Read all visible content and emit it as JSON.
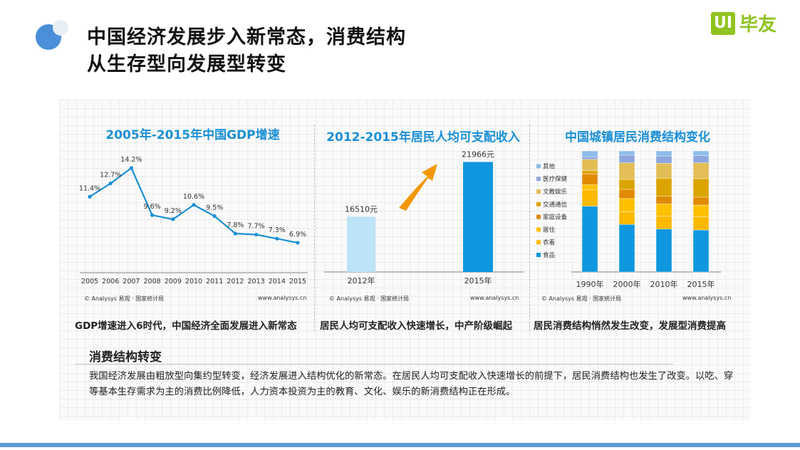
{
  "header": {
    "title_line1": "中国经济发展步入新常态，消费结构",
    "title_line2": "从生存型向发展型转变",
    "logo_badge": "UI",
    "logo_text": "毕友"
  },
  "colors": {
    "blue": "#0f97df",
    "accent": "#1a8fd6",
    "arrow": "#f39800",
    "light_bar": "#bde3f7"
  },
  "chart_data": [
    {
      "type": "line",
      "title": "2005年-2015年中国GDP增速",
      "x": [
        "2005",
        "2006",
        "2007",
        "2008",
        "2009",
        "2010",
        "2011",
        "2012",
        "2013",
        "2014",
        "2015"
      ],
      "values": [
        11.4,
        12.7,
        14.2,
        9.6,
        9.2,
        10.6,
        9.5,
        7.8,
        7.7,
        7.3,
        6.9
      ],
      "labels": [
        "11.4%",
        "12.7%",
        "14.2%",
        "9.6%",
        "9.2%",
        "10.6%",
        "9.5%",
        "7.8%",
        "7.7%",
        "7.3%",
        "6.9%"
      ],
      "ylim": [
        0,
        16
      ],
      "source": "© Analysys 易观 · 国家统计局",
      "site": "www.analysys.cn"
    },
    {
      "type": "bar",
      "title": "2012-2015年居民人均可支配收入",
      "categories": [
        "2012年",
        "2015年"
      ],
      "values": [
        16510,
        21966
      ],
      "labels": [
        "16510元",
        "21966元"
      ],
      "ylim": [
        11000,
        22000
      ],
      "source": "© Analysys 易观 · 国家统计局",
      "site": "www.analysys.cn"
    },
    {
      "type": "bar",
      "stacked": true,
      "title": "中国城镇居民消费结构变化",
      "categories": [
        "1990年",
        "2000年",
        "2010年",
        "2015年"
      ],
      "legend_position": "left",
      "series": [
        {
          "name": "食品",
          "color": "#0f97df",
          "values": [
            54.3,
            39.2,
            35.5,
            34.7
          ]
        },
        {
          "name": "衣着",
          "color": "#fbb900",
          "values": [
            13.7,
            10.4,
            10.6,
            10.8
          ]
        },
        {
          "name": "居住",
          "color": "#ffc000",
          "values": [
            4.1,
            11.0,
            10.2,
            9.8
          ]
        },
        {
          "name": "家庭设备",
          "color": "#e08a00",
          "values": [
            8.6,
            7.6,
            6.3,
            6.5
          ]
        },
        {
          "name": "交通通信",
          "color": "#dba400",
          "values": [
            2.9,
            8.2,
            14.9,
            15.3
          ]
        },
        {
          "name": "文教娱乐",
          "color": "#e3bd55",
          "values": [
            9.4,
            13.7,
            12.4,
            13.1
          ]
        },
        {
          "name": "医疗保健",
          "color": "#8ea6dd",
          "values": [
            2.0,
            6.3,
            5.9,
            5.9
          ]
        },
        {
          "name": "其他",
          "color": "#8ebde9",
          "values": [
            4.9,
            3.5,
            4.3,
            3.9
          ]
        }
      ],
      "ylim": [
        0,
        100
      ],
      "source": "© Analysys 易观 · 国家统计局",
      "site": "www.analysys.cn"
    }
  ],
  "captions": [
    "GDP增速进入6时代，中国经济全面发展进入新常态",
    "居民人均可支配收入快速增长，中产阶级崛起",
    "居民消费结构悄然发生改变，发展型消费提高"
  ],
  "summary": {
    "heading": "消费结构转变",
    "text": "我国经济发展由粗放型向集约型转变，经济发展进入结构优化的新常态。在居民人均可支配收入快速增长的前提下，居民消费结构也发生了改变。以吃、穿等基本生存需求为主的消费比例降低，人力资本投资为主的教育、文化、娱乐的新消费结构正在形成。"
  }
}
